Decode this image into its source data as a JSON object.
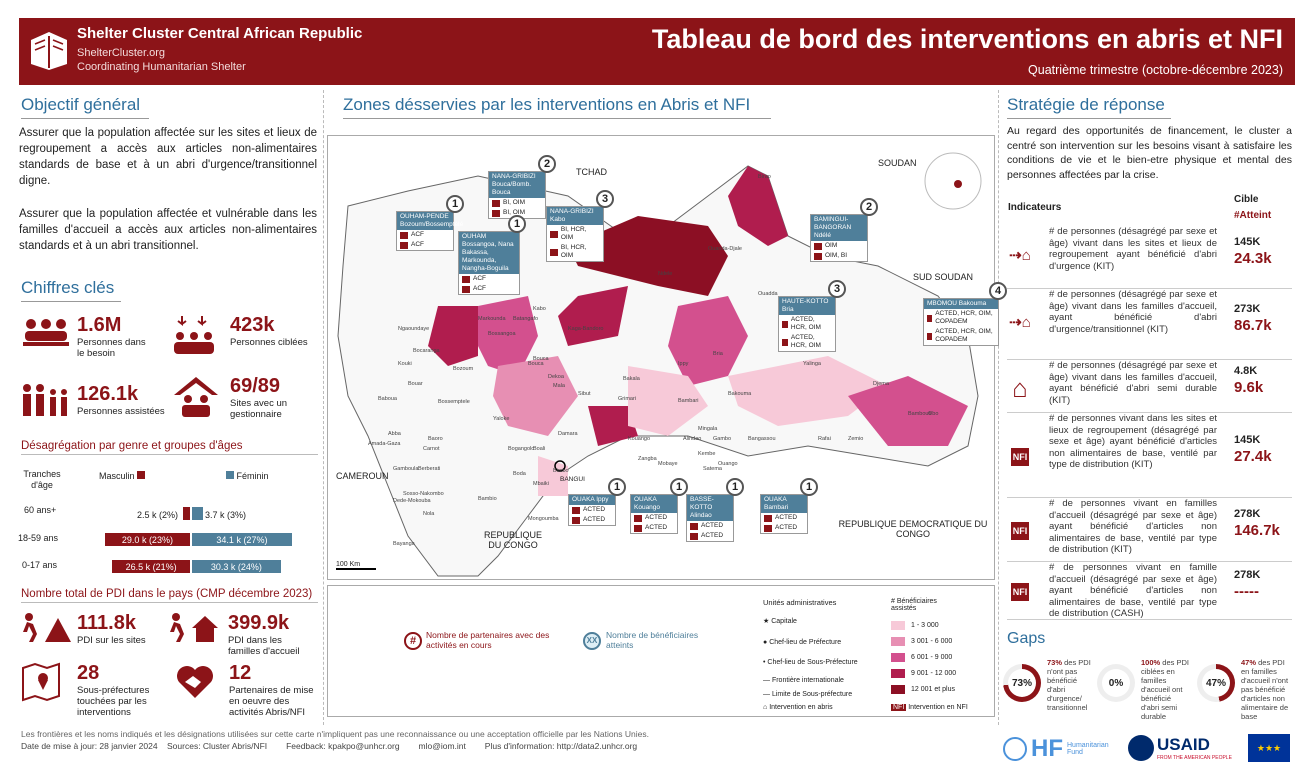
{
  "header": {
    "org_name": "Shelter Cluster Central African Republic",
    "org_url": "ShelterCluster.org",
    "org_tag": "Coordinating Humanitarian Shelter",
    "title": "Tableau de bord des interventions en abris et NFI",
    "period": "Quatrième trimestre (octobre-décembre 2023)"
  },
  "objectif": {
    "title": "Objectif général",
    "p1": "Assurer que la population affectée sur les sites et lieux de regroupement a accès aux articles non-alimentaires standards de base et à un abri d'urgence/transitionnel digne.",
    "p2": "Assurer que la population affectée et vulnérable dans les familles d'accueil a accès aux articles non-alimentaires standards et à un abri transitionnel."
  },
  "chiffres": {
    "title": "Chiffres clés",
    "items": [
      {
        "value": "1.6M",
        "label": "Personnes dans le besoin"
      },
      {
        "value": "423k",
        "label": "Personnes ciblées"
      },
      {
        "value": "126.1k",
        "label": "Personnes assistées"
      },
      {
        "value": "69/89",
        "label": "Sites avec un gestionnaire"
      }
    ]
  },
  "desag": {
    "title": "Désagrégation par genre et groupes d'âges",
    "col_age": "Tranches d'âge",
    "col_m": "Masculin",
    "col_f": "Féminin",
    "rows": [
      {
        "age": "60 ans+",
        "m": "2.5 k (2%)",
        "f": "3.7 k (3%)",
        "m_pct": 2,
        "f_pct": 3
      },
      {
        "age": "18-59 ans",
        "m": "29.0 k (23%)",
        "f": "34.1 k (27%)",
        "m_pct": 23,
        "f_pct": 27
      },
      {
        "age": "0-17 ans",
        "m": "26.5 k (21%)",
        "f": "30.3 k (24%)",
        "m_pct": 21,
        "f_pct": 24
      }
    ]
  },
  "pdi": {
    "title": "Nombre total de PDI dans le pays (CMP décembre 2023)",
    "items": [
      {
        "value": "111.8k",
        "label": "PDI sur les sites"
      },
      {
        "value": "399.9k",
        "label": "PDI dans les familles d'accueil"
      },
      {
        "value": "28",
        "label": "Sous-préfectures touchées par les interventions"
      },
      {
        "value": "12",
        "label": "Partenaires de mise en oeuvre des activités Abris/NFI"
      }
    ]
  },
  "map": {
    "title": "Zones désservies par les interventions en Abris et NFI",
    "countries": [
      "TCHAD",
      "SOUDAN",
      "SUD SOUDAN",
      "CAMEROUN",
      "REPUBLIQUE DU CONGO",
      "REPUBLIQUE DEMOCRATIQUE DU CONGO"
    ],
    "scale": "100 Km",
    "capital": "BANGUI",
    "callouts": [
      {
        "name": "OUHAM-PENDE Bozoum/Bossemptélé",
        "n": "1",
        "rows": [
          "ACF",
          "ACF"
        ]
      },
      {
        "name": "NANA-GRIBIZI Bouca/Bomb. Bouca",
        "n": "2",
        "rows": [
          "BI, OIM",
          "BI, OIM"
        ]
      },
      {
        "name": "NANA-GRIBIZI Kabo",
        "n": "3",
        "rows": [
          "BI, HCR, OIM",
          "BI, HCR, OIM"
        ]
      },
      {
        "name": "BAMINGUI-BANGORAN Ndélé",
        "n": "2",
        "rows": [
          "OIM",
          "OIM, BI"
        ]
      },
      {
        "name": "OUHAM Bossangoa, Nana Bakassa, Markounda, Nangha-Boguila",
        "n": "1",
        "rows": [
          "ACF",
          "ACF"
        ]
      },
      {
        "name": "HAUTE-KOTTO Bria",
        "n": "3",
        "rows": [
          "ACTED, HCR, OIM",
          "ACTED, HCR, OIM"
        ]
      },
      {
        "name": "MBOMOU Bakouma",
        "n": "4",
        "rows": [
          "ACTED, HCR, OIM, COPADEM",
          "ACTED, HCR, OIM, COPADEM"
        ]
      },
      {
        "name": "OUAKA Ippy",
        "n": "1",
        "rows": [
          "ACTED",
          "ACTED"
        ]
      },
      {
        "name": "OUAKA Kouango",
        "n": "1",
        "rows": [
          "ACTED",
          "ACTED"
        ]
      },
      {
        "name": "BASSE-KOTTO Alindao",
        "n": "1",
        "rows": [
          "ACTED",
          "ACTED"
        ]
      },
      {
        "name": "OUAKA Bambari",
        "n": "1",
        "rows": [
          "ACTED",
          "ACTED"
        ]
      }
    ],
    "towns": [
      "Ndele",
      "Kabo",
      "Ouanda-Djale",
      "Ouadda",
      "Birao",
      "Yalinga",
      "Bria",
      "Ippy",
      "Bambari",
      "Kaga-Bandoro",
      "Bossangoa",
      "Bocaranga",
      "Bouar",
      "Berberati",
      "Nola",
      "Mbaiki",
      "Alindao",
      "Kembe",
      "Mobaye",
      "Zemio",
      "Obo",
      "Djema",
      "Rafai",
      "Bangassou",
      "Kouango",
      "Bouca",
      "Batangafo",
      "Markounda",
      "Bozoum",
      "Baoro",
      "Carnot",
      "Gamboula",
      "Bayanga",
      "Bambio",
      "Boda",
      "Damara",
      "Sibut",
      "Grimari",
      "Dekoa",
      "Mala",
      "Bakala",
      "Mingala",
      "Gambo",
      "Ouango",
      "Satema",
      "Zangba",
      "Bakouma",
      "Bambouti",
      "Kouki",
      "Ngaoundaye",
      "Bossemptele",
      "Yaloke",
      "Bogangolo",
      "Boali",
      "Bimbo",
      "Baboua",
      "Abba",
      "Amada-Gaza",
      "Sosso-Nakombo",
      "Dede-Mokouba",
      "Mongoumba",
      "Bouca"
    ],
    "legend": {
      "partners": "Nombre de partenaires avec des activités en cours",
      "benef": "Nombre de bénéficiaires atteints",
      "units": "Unités administratives",
      "capital": "Capitale",
      "pref": "Chef-lieu de Préfecture",
      "souspref": "Chef-lieu de Sous-Préfecture",
      "frontier": "Frontière internationale",
      "limit": "Limite de Sous-préfecture",
      "abri": "Intervention en abris",
      "nfi": "Intervention en NFI",
      "benef_title": "# Bénéficiaires assistés",
      "classes": [
        "1 - 3 000",
        "3 001 - 6 000",
        "6 001 - 9 000",
        "9 001 - 12 000",
        "12 001 et plus"
      ],
      "colors": [
        "#f7c9d8",
        "#e78fb3",
        "#d3508e",
        "#b01d4e",
        "#8c0f24"
      ]
    }
  },
  "strategie": {
    "title": "Stratégie de réponse",
    "text": "Au regard des opportunités de financement, le cluster a centré son intervention sur les besoins visant à satisfaire les conditions de vie et le bien-etre physique et mental des personnes affectées par la crise.",
    "col_ind": "Indicateurs",
    "col_cible": "Cible",
    "col_att": "#Atteint",
    "indicators": [
      {
        "icon": "abri",
        "desc": "# de personnes (désagrégé par sexe et âge) vivant dans les sites et lieux de regroupement ayant bénéficié d'abri d'urgence (KIT)",
        "cible": "145K",
        "atteint": "24.3k"
      },
      {
        "icon": "abri",
        "desc": "# de personnes (désagrégé par sexe et âge) vivant dans les familles d'accueil, ayant bénéficié d'abri d'urgence/transitionnel (KIT)",
        "cible": "273K",
        "atteint": "86.7k"
      },
      {
        "icon": "house",
        "desc": "# de personnes (désagrégé par sexe et âge) vivant dans les familles d'accueil, ayant bénéficié d'abri semi durable (KIT)",
        "cible": "4.8K",
        "atteint": "9.6k"
      },
      {
        "icon": "NFI",
        "desc": "# de personnes vivant dans les sites et lieux de regroupement (désagrégé par sexe et âge) ayant bénéficié d'articles non alimentaires de base, ventilé par type de distribution (KIT)",
        "cible": "145K",
        "atteint": "27.4k"
      },
      {
        "icon": "NFI",
        "desc": "# de personnes vivant en familles d'accueil (désagrégé par sexe et âge) ayant bénéficié d'articles non alimentaires de base, ventilé par type de distribution (KIT)",
        "cible": "278K",
        "atteint": "146.7k"
      },
      {
        "icon": "NFI",
        "desc": "# de personnes vivant en famille d'accueil (désagrégé par sexe et âge) ayant bénéficié d'articles non alimentaires de base, ventilé par type de distribution (CASH)",
        "cible": "278K",
        "atteint": "-----"
      }
    ]
  },
  "gaps": {
    "title": "Gaps",
    "items": [
      {
        "pct": "73%",
        "value": 73,
        "strong": "73%",
        "text": " des PDI n'ont pas bénéficié d'abri d'urgence/ transitionnel"
      },
      {
        "pct": "0%",
        "value": 0,
        "strong": "100%",
        "text": " des PDI ciblées en familles d'accueil ont bénéficié d'abri semi durable"
      },
      {
        "pct": "47%",
        "value": 47,
        "strong": "47%",
        "text": " des PDI en familles d'accueil n'ont pas bénéficié d'articles non alimentaire de base"
      }
    ]
  },
  "footer": {
    "disclaimer": "Les frontières et les noms indiqués et les désignations utilisées sur cette carte n'impliquent pas une reconnaissance ou une acceptation officielle par les Nations Unies.",
    "update": "Date de mise à jour: 28 janvier 2024",
    "sources": "Sources: Cluster Abris/NFI",
    "feedback": "Feedback: kpakpo@unhcr.org",
    "email2": "mlo@iom.int",
    "more": "Plus d'information: http://data2.unhcr.org"
  },
  "logos": {
    "hf": "HF",
    "hf_sub": "Humanitarian Fund",
    "usaid": "USAID",
    "usaid_sub": "FROM THE AMERICAN PEOPLE"
  }
}
